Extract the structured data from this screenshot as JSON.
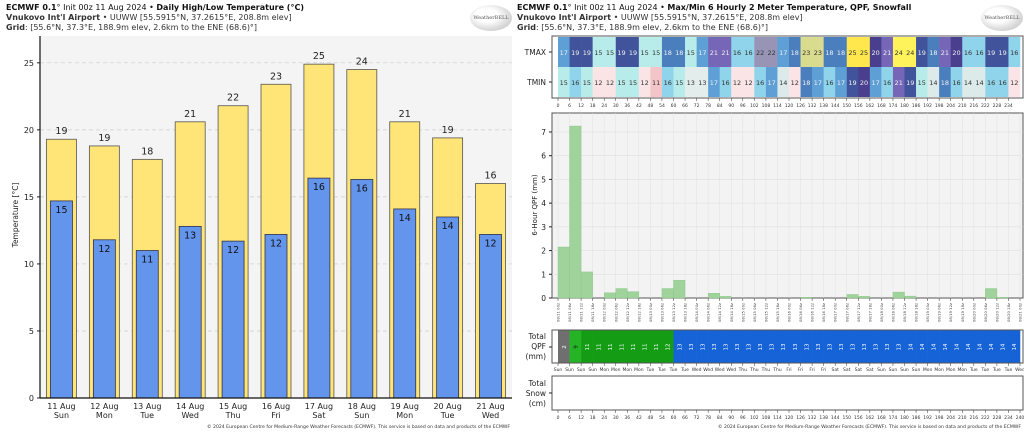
{
  "left": {
    "header": {
      "model": "ECMWF 0.1",
      "init": "° Init 00z 11 Aug 2024 • ",
      "title": "Daily High/Low Temperature (°C)",
      "station": "Vnukovo Int'l Airport",
      "station_info": " • UUWW [55.5915°N, 37.2615°E, 208.8m elev]",
      "grid_label": "Grid",
      "grid_info": ": [55.6°N, 37.3°E, 188.9m elev, 2.6km to the ENE (68.6)°]"
    },
    "logo_text": "WeatherBELL",
    "copyright": "© 2024 European Centre for Medium-Range Weather Forecasts (ECMWF). This service is based on data and products of the ECMWF"
  },
  "right": {
    "header": {
      "model": "ECMWF 0.1",
      "init": "° Init 00z 11 Aug 2024 • ",
      "title": "Max/Min 6 Hourly 2 Meter Temperature,  QPF,  Snowfall",
      "station": "Vnukovo Int'l Airport",
      "station_info": " • UUWW [55.5915°N, 37.2615°E, 208.8m elev]",
      "grid_label": "Grid",
      "grid_info": ": [55.6°N, 37.3°E, 188.9m elev, 2.6km to the ENE (68.6)°]"
    },
    "logo_text": "WeatherBELL",
    "copyright": "© 2024 European Centre for Medium-Range Weather Forecasts (ECMWF). This service is based on data and products of the ECMWF",
    "row_labels": {
      "tmax": "TMAX",
      "tmin": "TMIN",
      "qpf_total": [
        "Total",
        "QPF",
        "(mm)"
      ],
      "snow_total": [
        "Total",
        "Snow",
        "(cm)"
      ]
    }
  },
  "chart_data": [
    {
      "type": "bar",
      "ylabel": "Temperature [°C]",
      "ylim": [
        0,
        27
      ],
      "yticks": [
        0,
        5,
        10,
        15,
        20,
        25
      ],
      "grid": true,
      "categories": [
        [
          "11 Aug",
          "Sun"
        ],
        [
          "12 Aug",
          "Mon"
        ],
        [
          "13 Aug",
          "Tue"
        ],
        [
          "14 Aug",
          "Wed"
        ],
        [
          "15 Aug",
          "Thu"
        ],
        [
          "16 Aug",
          "Fri"
        ],
        [
          "17 Aug",
          "Sat"
        ],
        [
          "18 Aug",
          "Sun"
        ],
        [
          "19 Aug",
          "Mon"
        ],
        [
          "20 Aug",
          "Tue"
        ],
        [
          "21 Aug",
          "Wed"
        ]
      ],
      "series": [
        {
          "values": [
            19.3,
            18.8,
            17.8,
            20.6,
            21.8,
            23.4,
            24.9,
            24.5,
            20.6,
            19.4,
            16.0
          ],
          "labels": [
            "19",
            "19",
            "18",
            "21",
            "22",
            "23",
            "25",
            "24",
            "21",
            "19",
            "16"
          ],
          "color": "#ffe477"
        },
        {
          "values": [
            14.7,
            11.8,
            11.0,
            12.8,
            11.7,
            12.2,
            16.4,
            16.3,
            14.1,
            13.5,
            12.2
          ],
          "labels": [
            "15",
            "12",
            "11",
            "13",
            "12",
            "12",
            "16",
            "16",
            "14",
            "14",
            "12"
          ],
          "color": "#6495ed"
        }
      ]
    },
    {
      "type": "heatmap",
      "x_hours": [
        0,
        6,
        12,
        18,
        24,
        30,
        36,
        42,
        48,
        54,
        60,
        66,
        72,
        78,
        84,
        90,
        96,
        102,
        108,
        114,
        120,
        126,
        132,
        138,
        144,
        150,
        156,
        162,
        168,
        174,
        180,
        186,
        192,
        198,
        204,
        210,
        216,
        222,
        228,
        234,
        240
      ],
      "rows": [
        {
          "name": "TMAX",
          "values": [
            17,
            19,
            19,
            15,
            15,
            19,
            19,
            15,
            15,
            18,
            18,
            15,
            17,
            21,
            21,
            16,
            16,
            22,
            22,
            17,
            18,
            23,
            23,
            18,
            18,
            25,
            25,
            20,
            21,
            24,
            24,
            19,
            18,
            21,
            20,
            16,
            16,
            19,
            19,
            16
          ]
        },
        {
          "name": "TMIN",
          "values": [
            15,
            16,
            15,
            12,
            12,
            15,
            15,
            12,
            11,
            16,
            15,
            13,
            13,
            17,
            16,
            12,
            12,
            16,
            17,
            14,
            12,
            18,
            17,
            16,
            17,
            19,
            20,
            17,
            16,
            21,
            19,
            15,
            14,
            18,
            16,
            14,
            14,
            16,
            16,
            12
          ]
        }
      ],
      "color_scale": {
        "11": "#f3c5c8",
        "12": "#fbe4e6",
        "13": "#e3eeec",
        "14": "#dcebea",
        "15": "#b8ecea",
        "16": "#8fd4ea",
        "17": "#5e9fd6",
        "18": "#4a7ebd",
        "19": "#40539b",
        "20": "#4a3f8e",
        "21": "#7566b8",
        "22": "#9894b6",
        "23": "#d9dc8e",
        "24": "#fff35c",
        "25": "#ffe74d"
      }
    },
    {
      "type": "bar",
      "ylabel": "6-Hour QPF (mm)",
      "ylim": [
        0,
        7.8
      ],
      "yticks": [
        0,
        1,
        2,
        3,
        4,
        5,
        6,
        7
      ],
      "grid": true,
      "color": "#9fd39b",
      "x_labels": [
        "08/11 00z",
        "08/11 06z",
        "08/11 12z",
        "08/11 18z",
        "08/12 00z",
        "08/12 06z",
        "08/12 12z",
        "08/12 18z",
        "08/13 00z",
        "08/13 06z",
        "08/13 12z",
        "08/13 18z",
        "08/14 00z",
        "08/14 06z",
        "08/14 12z",
        "08/14 18z",
        "08/15 00z",
        "08/15 06z",
        "08/15 12z",
        "08/15 18z",
        "08/16 00z",
        "08/16 06z",
        "08/16 12z",
        "08/16 18z",
        "08/17 00z",
        "08/17 06z",
        "08/17 12z",
        "08/17 18z",
        "08/18 00z",
        "08/18 06z",
        "08/18 12z",
        "08/18 18z",
        "08/19 00z",
        "08/19 06z",
        "08/19 12z",
        "08/19 18z",
        "08/20 00z",
        "08/20 06z",
        "08/20 12z",
        "08/20 18z",
        "08/21 00z"
      ],
      "values": [
        2.15,
        7.25,
        1.1,
        0,
        0.22,
        0.4,
        0.27,
        0,
        0,
        0.4,
        0.75,
        0,
        0,
        0.2,
        0.07,
        0,
        0,
        0,
        0,
        0,
        0,
        0.03,
        0,
        0,
        0,
        0.15,
        0.07,
        0,
        0,
        0.25,
        0.08,
        0,
        0,
        0,
        0,
        0,
        0,
        0.4,
        0.03,
        0
      ]
    },
    {
      "type": "table",
      "name": "Total QPF (mm)",
      "values": [
        2,
        9,
        11,
        11,
        11,
        11,
        11,
        11,
        11,
        12,
        13,
        13,
        13,
        13,
        13,
        13,
        13,
        13,
        13,
        13,
        13,
        13,
        13,
        13,
        13,
        13,
        13,
        13,
        13,
        13,
        14,
        14,
        14,
        14,
        14,
        14,
        14,
        14,
        14,
        14
      ],
      "colors": {
        "2": "#6f6f6f",
        "9": "#25b425",
        "11": "#149c14",
        "12": "#149c14",
        "13": "#1563d6",
        "14": "#1563d6"
      },
      "day_labels": [
        "Sun",
        "Sun",
        "Sun",
        "Sun",
        "Mon",
        "Mon",
        "Mon",
        "Mon",
        "Tue",
        "Tue",
        "Tue",
        "Tue",
        "Wed",
        "Wed",
        "Wed",
        "Wed",
        "Thu",
        "Thu",
        "Thu",
        "Thu",
        "Fri",
        "Fri",
        "Fri",
        "Fri",
        "Sat",
        "Sat",
        "Sat",
        "Sat",
        "Sun",
        "Sun",
        "Sun",
        "Sun",
        "Mon",
        "Mon",
        "Mon",
        "Mon",
        "Tue",
        "Tue",
        "Tue",
        "Tue",
        "Wed"
      ]
    },
    {
      "type": "table",
      "name": "Total Snow (cm)",
      "values": []
    }
  ]
}
